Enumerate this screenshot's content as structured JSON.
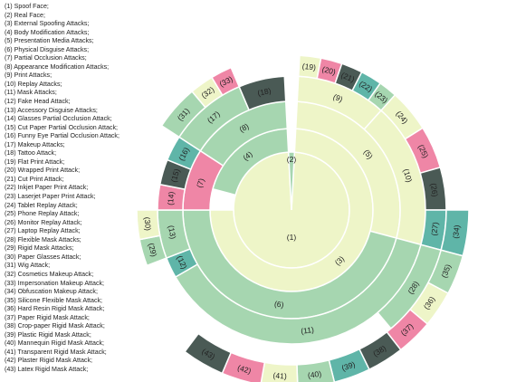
{
  "colors": {
    "light": "#eef5c8",
    "green": "#a6d6b0",
    "teal": "#5fb5a8",
    "dark": "#4a5a55",
    "pink": "#ef86a6",
    "stroke": "#ffffff"
  },
  "legend": [
    "(1) Spoof Face;",
    "(2) Real Face;",
    "(3) External Spoofing Attacks;",
    "(4) Body Modification Attacks;",
    "(5) Presentation Media Attacks;",
    "(6) Physical Disguise Attacks;",
    "(7) Partial Occlusion Attacks;",
    "(8) Appearance Modification Attacks;",
    "(9) Print Attacks;",
    "(10) Replay Attacks;",
    "(11) Mask Attacks;",
    "(12) Fake Head Attack;",
    "(13) Accessory Disguise Attacks;",
    "(14) Glasses Partial Occlusion Attack;",
    "(15) Cut Paper Partial Occlusion Attack;",
    "(16) Funny Eye Partial Occlusion Attack;",
    "(17) Makeup Attacks;",
    "(18) Tattoo Attack;",
    "(19) Flat Print Attack;",
    "(20) Wrapped Print Attack;",
    "(21) Cut Print Attack;",
    "(22) Inkjet Paper Print Attack;",
    "(23) Laserjet Paper Print Attack;",
    "(24) Tablet Replay Attack;",
    "(25) Phone Replay Attack;",
    "(26) Monitor Replay Attack;",
    "(27) Laptop Replay Attack;",
    "(28) Flexible Mask Attacks;",
    "(29) Rigid Mask Attacks;",
    "(30) Paper Glasses Attack;",
    "(31) Wig Attack;",
    "(32) Cosmetics Makeup Attack;",
    "(33) Impersonation Makeup Attack;",
    "(34) Obfuscation Makeup Attack;",
    "(35) Silicone Flexible Mask Attack;",
    "(36) Hard Resin Rigid Mask Attack;",
    "(37) Paper Rigid Mask Attack;",
    "(38) Crop-paper Rigid Mask Attack;",
    "(39) Plastic Rigid Mask Attack;",
    "(40) Mannequin Rigid Mask Attack;",
    "(41) Transparent Rigid Mask Attack;",
    "(42) Plaster Rigid Mask Attack;",
    "(43) Latex Rigid Mask Attack;"
  ],
  "segments": [
    {
      "label": "(1)",
      "ring": 1,
      "start": 3,
      "end": 357,
      "color": "light"
    },
    {
      "label": "(2)",
      "ring": 1,
      "start": 357,
      "end": 363,
      "color": "green"
    },
    {
      "label": "(3)",
      "ring": 2,
      "start": 3,
      "end": 270,
      "color": "light"
    },
    {
      "label": "(4)",
      "ring": 2,
      "start": 285,
      "end": 357,
      "color": "green"
    },
    {
      "label": "(5)",
      "ring": 3,
      "start": 3,
      "end": 105,
      "color": "light"
    },
    {
      "label": "(6)",
      "ring": 3,
      "start": 105,
      "end": 270,
      "color": "green"
    },
    {
      "label": "(7)",
      "ring": 3,
      "start": 270,
      "end": 303,
      "color": "pink"
    },
    {
      "label": "(8)",
      "ring": 3,
      "start": 303,
      "end": 357,
      "color": "green"
    },
    {
      "label": "(9)",
      "ring": 4,
      "start": 3,
      "end": 42,
      "color": "light"
    },
    {
      "label": "(10)",
      "ring": 4,
      "start": 42,
      "end": 105,
      "color": "light"
    },
    {
      "label": "(11)",
      "ring": 4,
      "start": 105,
      "end": 240,
      "color": "green"
    },
    {
      "label": "(12)",
      "ring": 4,
      "start": 240,
      "end": 249,
      "color": "teal"
    },
    {
      "label": "(13)",
      "ring": 4,
      "start": 249,
      "end": 270,
      "color": "green"
    },
    {
      "label": "(14)",
      "ring": 4,
      "start": 270,
      "end": 281,
      "color": "pink"
    },
    {
      "label": "(15)",
      "ring": 4,
      "start": 281,
      "end": 292,
      "color": "dark"
    },
    {
      "label": "(16)",
      "ring": 4,
      "start": 292,
      "end": 303,
      "color": "teal"
    },
    {
      "label": "(17)",
      "ring": 4,
      "start": 303,
      "end": 337,
      "color": "green"
    },
    {
      "label": "(18)",
      "ring": 4,
      "start": 337,
      "end": 357,
      "color": "dark"
    },
    {
      "label": "(19)",
      "ring": 5,
      "start": 3,
      "end": 11,
      "color": "light"
    },
    {
      "label": "(20)",
      "ring": 5,
      "start": 11,
      "end": 19,
      "color": "pink"
    },
    {
      "label": "(21)",
      "ring": 5,
      "start": 19,
      "end": 27,
      "color": "dark"
    },
    {
      "label": "(22)",
      "ring": 5,
      "start": 27,
      "end": 35,
      "color": "teal"
    },
    {
      "label": "(23)",
      "ring": 5,
      "start": 35,
      "end": 42,
      "color": "green"
    },
    {
      "label": "(24)",
      "ring": 5,
      "start": 42,
      "end": 58,
      "color": "light"
    },
    {
      "label": "(25)",
      "ring": 5,
      "start": 58,
      "end": 74,
      "color": "pink"
    },
    {
      "label": "(26)",
      "ring": 5,
      "start": 74,
      "end": 90,
      "color": "dark"
    },
    {
      "label": "(27)",
      "ring": 5,
      "start": 90,
      "end": 105,
      "color": "teal"
    },
    {
      "label": "(28)",
      "ring": 5,
      "start": 105,
      "end": 140,
      "color": "green"
    },
    {
      "label": "(29)",
      "ring": 5,
      "start": 249,
      "end": 259,
      "color": "green"
    },
    {
      "label": "(30)",
      "ring": 5,
      "start": 259,
      "end": 270,
      "color": "light"
    },
    {
      "label": "(31)",
      "ring": 5,
      "start": 303,
      "end": 320,
      "color": "green"
    },
    {
      "label": "(32)",
      "ring": 5,
      "start": 320,
      "end": 329,
      "color": "light"
    },
    {
      "label": "(33)",
      "ring": 5,
      "start": 329,
      "end": 337,
      "color": "pink"
    },
    {
      "label": "(34)",
      "ring": 6,
      "start": 90,
      "end": 105,
      "color": "teal"
    },
    {
      "label": "(35)",
      "ring": 6,
      "start": 105,
      "end": 118,
      "color": "green"
    },
    {
      "label": "(36)",
      "ring": 6,
      "start": 118,
      "end": 130,
      "color": "light"
    },
    {
      "label": "(37)",
      "ring": 6,
      "start": 130,
      "end": 142,
      "color": "pink"
    },
    {
      "label": "(38)",
      "ring": 6,
      "start": 142,
      "end": 154,
      "color": "dark"
    },
    {
      "label": "(39)",
      "ring": 6,
      "start": 154,
      "end": 166,
      "color": "teal"
    },
    {
      "label": "(40)",
      "ring": 6,
      "start": 166,
      "end": 178,
      "color": "green"
    },
    {
      "label": "(41)",
      "ring": 6,
      "start": 178,
      "end": 190,
      "color": "light"
    },
    {
      "label": "(42)",
      "ring": 6,
      "start": 190,
      "end": 203,
      "color": "pink"
    },
    {
      "label": "(43)",
      "ring": 6,
      "start": 203,
      "end": 217,
      "color": "dark"
    }
  ]
}
